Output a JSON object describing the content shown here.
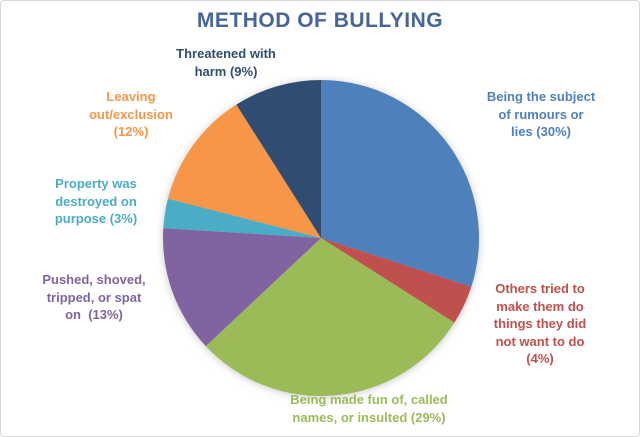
{
  "title_color": "#46659a",
  "chart_data": {
    "type": "pie",
    "title": "METHOD OF BULLYING",
    "start_angle_deg": 0,
    "direction": "clockwise",
    "legend_position": "none",
    "labels_style": "outside, colored to match slice",
    "slices": [
      {
        "id": "rumours",
        "label": "Being the subject of rumours or lies",
        "pct": 30,
        "color": "#4e80bc",
        "label_text": "Being the subject\nof rumours or\nlies (30%)"
      },
      {
        "id": "others",
        "label": "Others tried to make them do things they did not want to do",
        "pct": 4,
        "color": "#c0504d",
        "label_text": "Others tried to\nmake them do\nthings they did\nnot want to do\n(4%)"
      },
      {
        "id": "made-fun",
        "label": "Being made fun of, called names, or insulted",
        "pct": 29,
        "color": "#9bbb59",
        "label_text": "Being made fun of, called\nnames, or insulted (29%)"
      },
      {
        "id": "pushed",
        "label": "Pushed, shoved, tripped, or spat on",
        "pct": 13,
        "color": "#8064a2",
        "label_text": "Pushed, shoved,\ntripped, or spat\non  (13%)"
      },
      {
        "id": "property",
        "label": "Property was destroyed on purpose",
        "pct": 3,
        "color": "#4bacc6",
        "label_text": "Property was\ndestroyed on\npurpose (3%)"
      },
      {
        "id": "exclusion",
        "label": "Leaving out/exclusion",
        "pct": 12,
        "color": "#f79646",
        "label_text": "Leaving\nout/exclusion\n(12%)"
      },
      {
        "id": "threatened",
        "label": "Threatened with harm",
        "pct": 9,
        "color": "#2f4d72",
        "label_text": "Threatened with\nharm (9%)"
      }
    ]
  }
}
